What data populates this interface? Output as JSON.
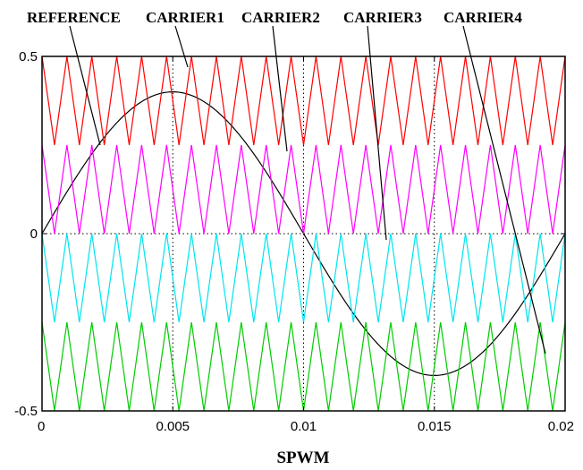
{
  "chart_data": {
    "type": "line",
    "title": "",
    "xlabel": "SPWM",
    "ylabel": "",
    "xlim": [
      0,
      0.02
    ],
    "ylim": [
      -0.5,
      0.5
    ],
    "xticks": [
      "0",
      "0.005",
      "0.01",
      "0.015",
      "0.02"
    ],
    "yticks": [
      "0.5",
      "0",
      "-0.5"
    ],
    "grid_x": [
      0.005,
      0.01,
      0.015
    ],
    "grid_y": [
      0
    ],
    "annotation_labels": [
      "REFERENCE",
      "CARRIER1",
      "CARRIER2",
      "CARRIER3",
      "CARRIER4"
    ],
    "series": [
      {
        "name": "REFERENCE",
        "kind": "sine",
        "amplitude": 0.4,
        "frequency_hz": 50,
        "color": "#000000"
      },
      {
        "name": "CARRIER1",
        "kind": "triangle",
        "min": 0.25,
        "max": 0.5,
        "periods": 21,
        "color": "#ff0000"
      },
      {
        "name": "CARRIER2",
        "kind": "triangle",
        "min": 0.0,
        "max": 0.25,
        "periods": 21,
        "color": "#ff00ff"
      },
      {
        "name": "CARRIER3",
        "kind": "triangle",
        "min": -0.25,
        "max": 0.0,
        "periods": 21,
        "color": "#00e5ee"
      },
      {
        "name": "CARRIER4",
        "kind": "triangle",
        "min": -0.5,
        "max": -0.25,
        "periods": 21,
        "color": "#00cc00"
      }
    ]
  }
}
